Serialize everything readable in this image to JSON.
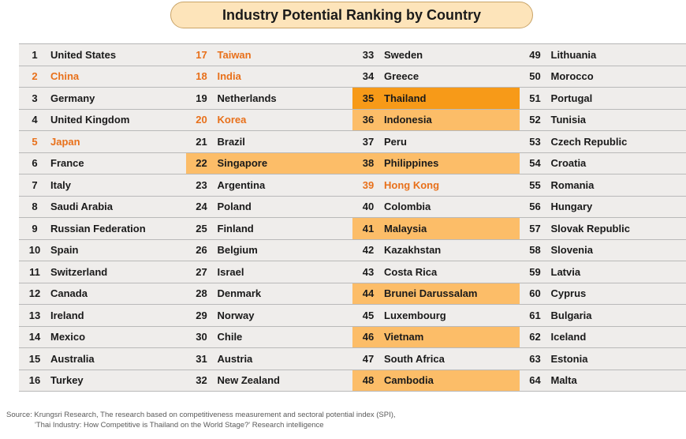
{
  "chart_data": {
    "type": "table",
    "title": "Industry Potential Ranking by Country",
    "colors": {
      "orange_text": "#e8701a",
      "highlight_light": "#fcbd68",
      "highlight_dark": "#f79a18",
      "row_bg": "#efedeb"
    },
    "columns": [
      [
        {
          "rank": "1",
          "country": "United States",
          "style": ""
        },
        {
          "rank": "2",
          "country": "China",
          "style": "orange-text"
        },
        {
          "rank": "3",
          "country": "Germany",
          "style": ""
        },
        {
          "rank": "4",
          "country": "United Kingdom",
          "style": ""
        },
        {
          "rank": "5",
          "country": "Japan",
          "style": "orange-text"
        },
        {
          "rank": "6",
          "country": "France",
          "style": ""
        },
        {
          "rank": "7",
          "country": "Italy",
          "style": ""
        },
        {
          "rank": "8",
          "country": "Saudi Arabia",
          "style": ""
        },
        {
          "rank": "9",
          "country": "Russian Federation",
          "style": ""
        },
        {
          "rank": "10",
          "country": "Spain",
          "style": ""
        },
        {
          "rank": "11",
          "country": "Switzerland",
          "style": ""
        },
        {
          "rank": "12",
          "country": "Canada",
          "style": ""
        },
        {
          "rank": "13",
          "country": "Ireland",
          "style": ""
        },
        {
          "rank": "14",
          "country": "Mexico",
          "style": ""
        },
        {
          "rank": "15",
          "country": "Australia",
          "style": ""
        },
        {
          "rank": "16",
          "country": "Turkey",
          "style": ""
        }
      ],
      [
        {
          "rank": "17",
          "country": "Taiwan",
          "style": "orange-text"
        },
        {
          "rank": "18",
          "country": "India",
          "style": "orange-text"
        },
        {
          "rank": "19",
          "country": "Netherlands",
          "style": ""
        },
        {
          "rank": "20",
          "country": "Korea",
          "style": "orange-text"
        },
        {
          "rank": "21",
          "country": "Brazil",
          "style": ""
        },
        {
          "rank": "22",
          "country": "Singapore",
          "style": "hl-light"
        },
        {
          "rank": "23",
          "country": "Argentina",
          "style": ""
        },
        {
          "rank": "24",
          "country": "Poland",
          "style": ""
        },
        {
          "rank": "25",
          "country": "Finland",
          "style": ""
        },
        {
          "rank": "26",
          "country": "Belgium",
          "style": ""
        },
        {
          "rank": "27",
          "country": "Israel",
          "style": ""
        },
        {
          "rank": "28",
          "country": "Denmark",
          "style": ""
        },
        {
          "rank": "29",
          "country": "Norway",
          "style": ""
        },
        {
          "rank": "30",
          "country": "Chile",
          "style": ""
        },
        {
          "rank": "31",
          "country": "Austria",
          "style": ""
        },
        {
          "rank": "32",
          "country": "New Zealand",
          "style": ""
        }
      ],
      [
        {
          "rank": "33",
          "country": "Sweden",
          "style": ""
        },
        {
          "rank": "34",
          "country": "Greece",
          "style": ""
        },
        {
          "rank": "35",
          "country": "Thailand",
          "style": "hl-dark"
        },
        {
          "rank": "36",
          "country": "Indonesia",
          "style": "hl-light"
        },
        {
          "rank": "37",
          "country": "Peru",
          "style": ""
        },
        {
          "rank": "38",
          "country": "Philippines",
          "style": "hl-light"
        },
        {
          "rank": "39",
          "country": "Hong Kong",
          "style": "orange-text"
        },
        {
          "rank": "40",
          "country": "Colombia",
          "style": ""
        },
        {
          "rank": "41",
          "country": "Malaysia",
          "style": "hl-light"
        },
        {
          "rank": "42",
          "country": "Kazakhstan",
          "style": ""
        },
        {
          "rank": "43",
          "country": "Costa Rica",
          "style": ""
        },
        {
          "rank": "44",
          "country": "Brunei Darussalam",
          "style": "hl-light"
        },
        {
          "rank": "45",
          "country": "Luxembourg",
          "style": ""
        },
        {
          "rank": "46",
          "country": "Vietnam",
          "style": "hl-light"
        },
        {
          "rank": "47",
          "country": "South Africa",
          "style": ""
        },
        {
          "rank": "48",
          "country": "Cambodia",
          "style": "hl-light"
        }
      ],
      [
        {
          "rank": "49",
          "country": "Lithuania",
          "style": ""
        },
        {
          "rank": "50",
          "country": "Morocco",
          "style": ""
        },
        {
          "rank": "51",
          "country": "Portugal",
          "style": ""
        },
        {
          "rank": "52",
          "country": "Tunisia",
          "style": ""
        },
        {
          "rank": "53",
          "country": "Czech Republic",
          "style": ""
        },
        {
          "rank": "54",
          "country": "Croatia",
          "style": ""
        },
        {
          "rank": "55",
          "country": "Romania",
          "style": ""
        },
        {
          "rank": "56",
          "country": "Hungary",
          "style": ""
        },
        {
          "rank": "57",
          "country": "Slovak Republic",
          "style": ""
        },
        {
          "rank": "58",
          "country": "Slovenia",
          "style": ""
        },
        {
          "rank": "59",
          "country": "Latvia",
          "style": ""
        },
        {
          "rank": "60",
          "country": "Cyprus",
          "style": ""
        },
        {
          "rank": "61",
          "country": "Bulgaria",
          "style": ""
        },
        {
          "rank": "62",
          "country": "Iceland",
          "style": ""
        },
        {
          "rank": "63",
          "country": "Estonia",
          "style": ""
        },
        {
          "rank": "64",
          "country": "Malta",
          "style": ""
        }
      ]
    ]
  },
  "source": {
    "line1": "Source:  Krungsri Research, The research based on competitiveness measurement and sectoral potential index (SPI),",
    "line2": "'Thai Industry: How Competitive is Thailand on the World Stage?' Research intelligence"
  }
}
